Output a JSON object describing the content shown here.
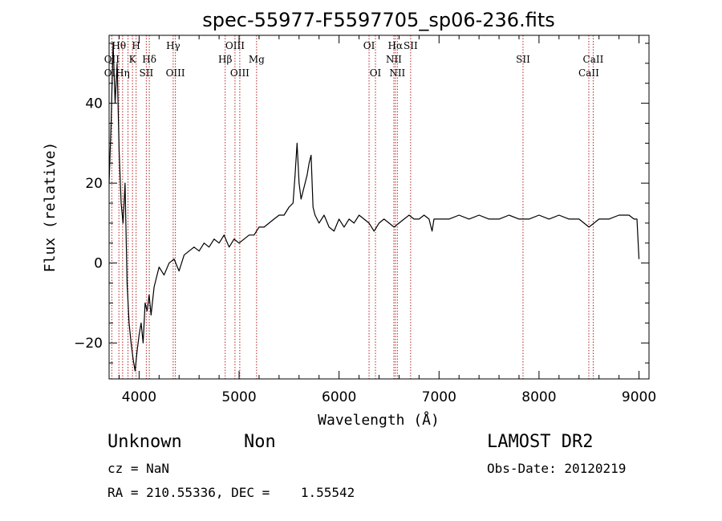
{
  "chart_data": {
    "type": "line",
    "title": "spec-55977-F5597705_sp06-236.fits",
    "xlabel": "Wavelength (Å)",
    "ylabel": "Flux (relative)",
    "xlim": [
      3700,
      9100
    ],
    "ylim": [
      -29,
      57
    ],
    "xticks": [
      4000,
      5000,
      6000,
      7000,
      8000,
      9000
    ],
    "yticks": [
      -20,
      0,
      20,
      40
    ],
    "grid": false,
    "series": [
      {
        "color": "#000000",
        "x": [
          3700,
          3720,
          3740,
          3760,
          3780,
          3800,
          3820,
          3840,
          3860,
          3880,
          3900,
          3920,
          3940,
          3960,
          3980,
          4000,
          4020,
          4040,
          4060,
          4080,
          4100,
          4120,
          4150,
          4180,
          4200,
          4250,
          4300,
          4350,
          4400,
          4450,
          4500,
          4550,
          4600,
          4650,
          4700,
          4750,
          4800,
          4850,
          4900,
          4950,
          5000,
          5050,
          5100,
          5150,
          5200,
          5250,
          5300,
          5350,
          5400,
          5450,
          5500,
          5540,
          5560,
          5580,
          5600,
          5620,
          5640,
          5660,
          5680,
          5700,
          5720,
          5740,
          5760,
          5780,
          5800,
          5850,
          5900,
          5950,
          6000,
          6050,
          6100,
          6150,
          6200,
          6250,
          6300,
          6350,
          6400,
          6450,
          6500,
          6550,
          6600,
          6650,
          6700,
          6750,
          6800,
          6850,
          6900,
          6930,
          6950,
          7000,
          7100,
          7200,
          7300,
          7400,
          7500,
          7600,
          7700,
          7800,
          7900,
          8000,
          8100,
          8200,
          8300,
          8400,
          8450,
          8500,
          8550,
          8600,
          8700,
          8800,
          8900,
          8950,
          8980,
          9000
        ],
        "y": [
          20,
          35,
          55,
          40,
          50,
          28,
          15,
          10,
          20,
          -5,
          -15,
          -20,
          -24,
          -27,
          -22,
          -18,
          -15,
          -20,
          -10,
          -12,
          -8,
          -13,
          -6,
          -3,
          -1,
          -3,
          0,
          1,
          -2,
          2,
          3,
          4,
          3,
          5,
          4,
          6,
          5,
          7,
          4,
          6,
          5,
          6,
          7,
          7,
          9,
          9,
          10,
          11,
          12,
          12,
          14,
          15,
          22,
          30,
          20,
          16,
          18,
          20,
          22,
          25,
          27,
          14,
          12,
          11,
          10,
          12,
          9,
          8,
          11,
          9,
          11,
          10,
          12,
          11,
          10,
          8,
          10,
          11,
          10,
          9,
          10,
          11,
          12,
          11,
          11,
          12,
          11,
          8,
          11,
          11,
          11,
          12,
          11,
          12,
          11,
          11,
          12,
          11,
          11,
          12,
          11,
          12,
          11,
          11,
          10,
          9,
          10,
          11,
          11,
          12,
          12,
          11,
          11,
          1
        ]
      }
    ],
    "lines_top": [
      {
        "label": "Hθ",
        "x": 3798
      },
      {
        "label": "H",
        "x": 3970
      },
      {
        "label": "Hγ",
        "x": 4341
      },
      {
        "label": "OIII",
        "x": 4959
      },
      {
        "label": "OI",
        "x": 6300
      },
      {
        "label": "Hα",
        "x": 6563
      },
      {
        "label": "SII",
        "x": 6716
      }
    ],
    "lines_mid": [
      {
        "label": "OII",
        "x": 3727
      },
      {
        "label": "K",
        "x": 3934
      },
      {
        "label": "Hδ",
        "x": 4102
      },
      {
        "label": "Hβ",
        "x": 4861
      },
      {
        "label": "Mg",
        "x": 5175
      },
      {
        "label": "NII",
        "x": 6548
      },
      {
        "label": "SII",
        "x": 7840
      },
      {
        "label": "CaII",
        "x": 8542
      }
    ],
    "lines_low": [
      {
        "label": "OII",
        "x": 3727
      },
      {
        "label": "Hη",
        "x": 3835
      },
      {
        "label": "SII",
        "x": 4072
      },
      {
        "label": "OIII",
        "x": 4363
      },
      {
        "label": "OIII",
        "x": 5007
      },
      {
        "label": "OI",
        "x": 6364
      },
      {
        "label": "NII",
        "x": 6583
      },
      {
        "label": "CaII",
        "x": 8498
      }
    ],
    "dotted_lines_x": [
      3727,
      3798,
      3835,
      3889,
      3934,
      3970,
      4072,
      4102,
      4341,
      4363,
      4861,
      4959,
      5007,
      5175,
      6300,
      6364,
      6548,
      6563,
      6583,
      6716,
      7840,
      8498,
      8542
    ]
  },
  "info": {
    "object_class": "Unknown",
    "subclass": "Non",
    "survey": "LAMOST DR2",
    "cz": "cz = NaN",
    "obs_date": "Obs-Date: 20120219",
    "coords": "RA = 210.55336, DEC =    1.55542"
  }
}
